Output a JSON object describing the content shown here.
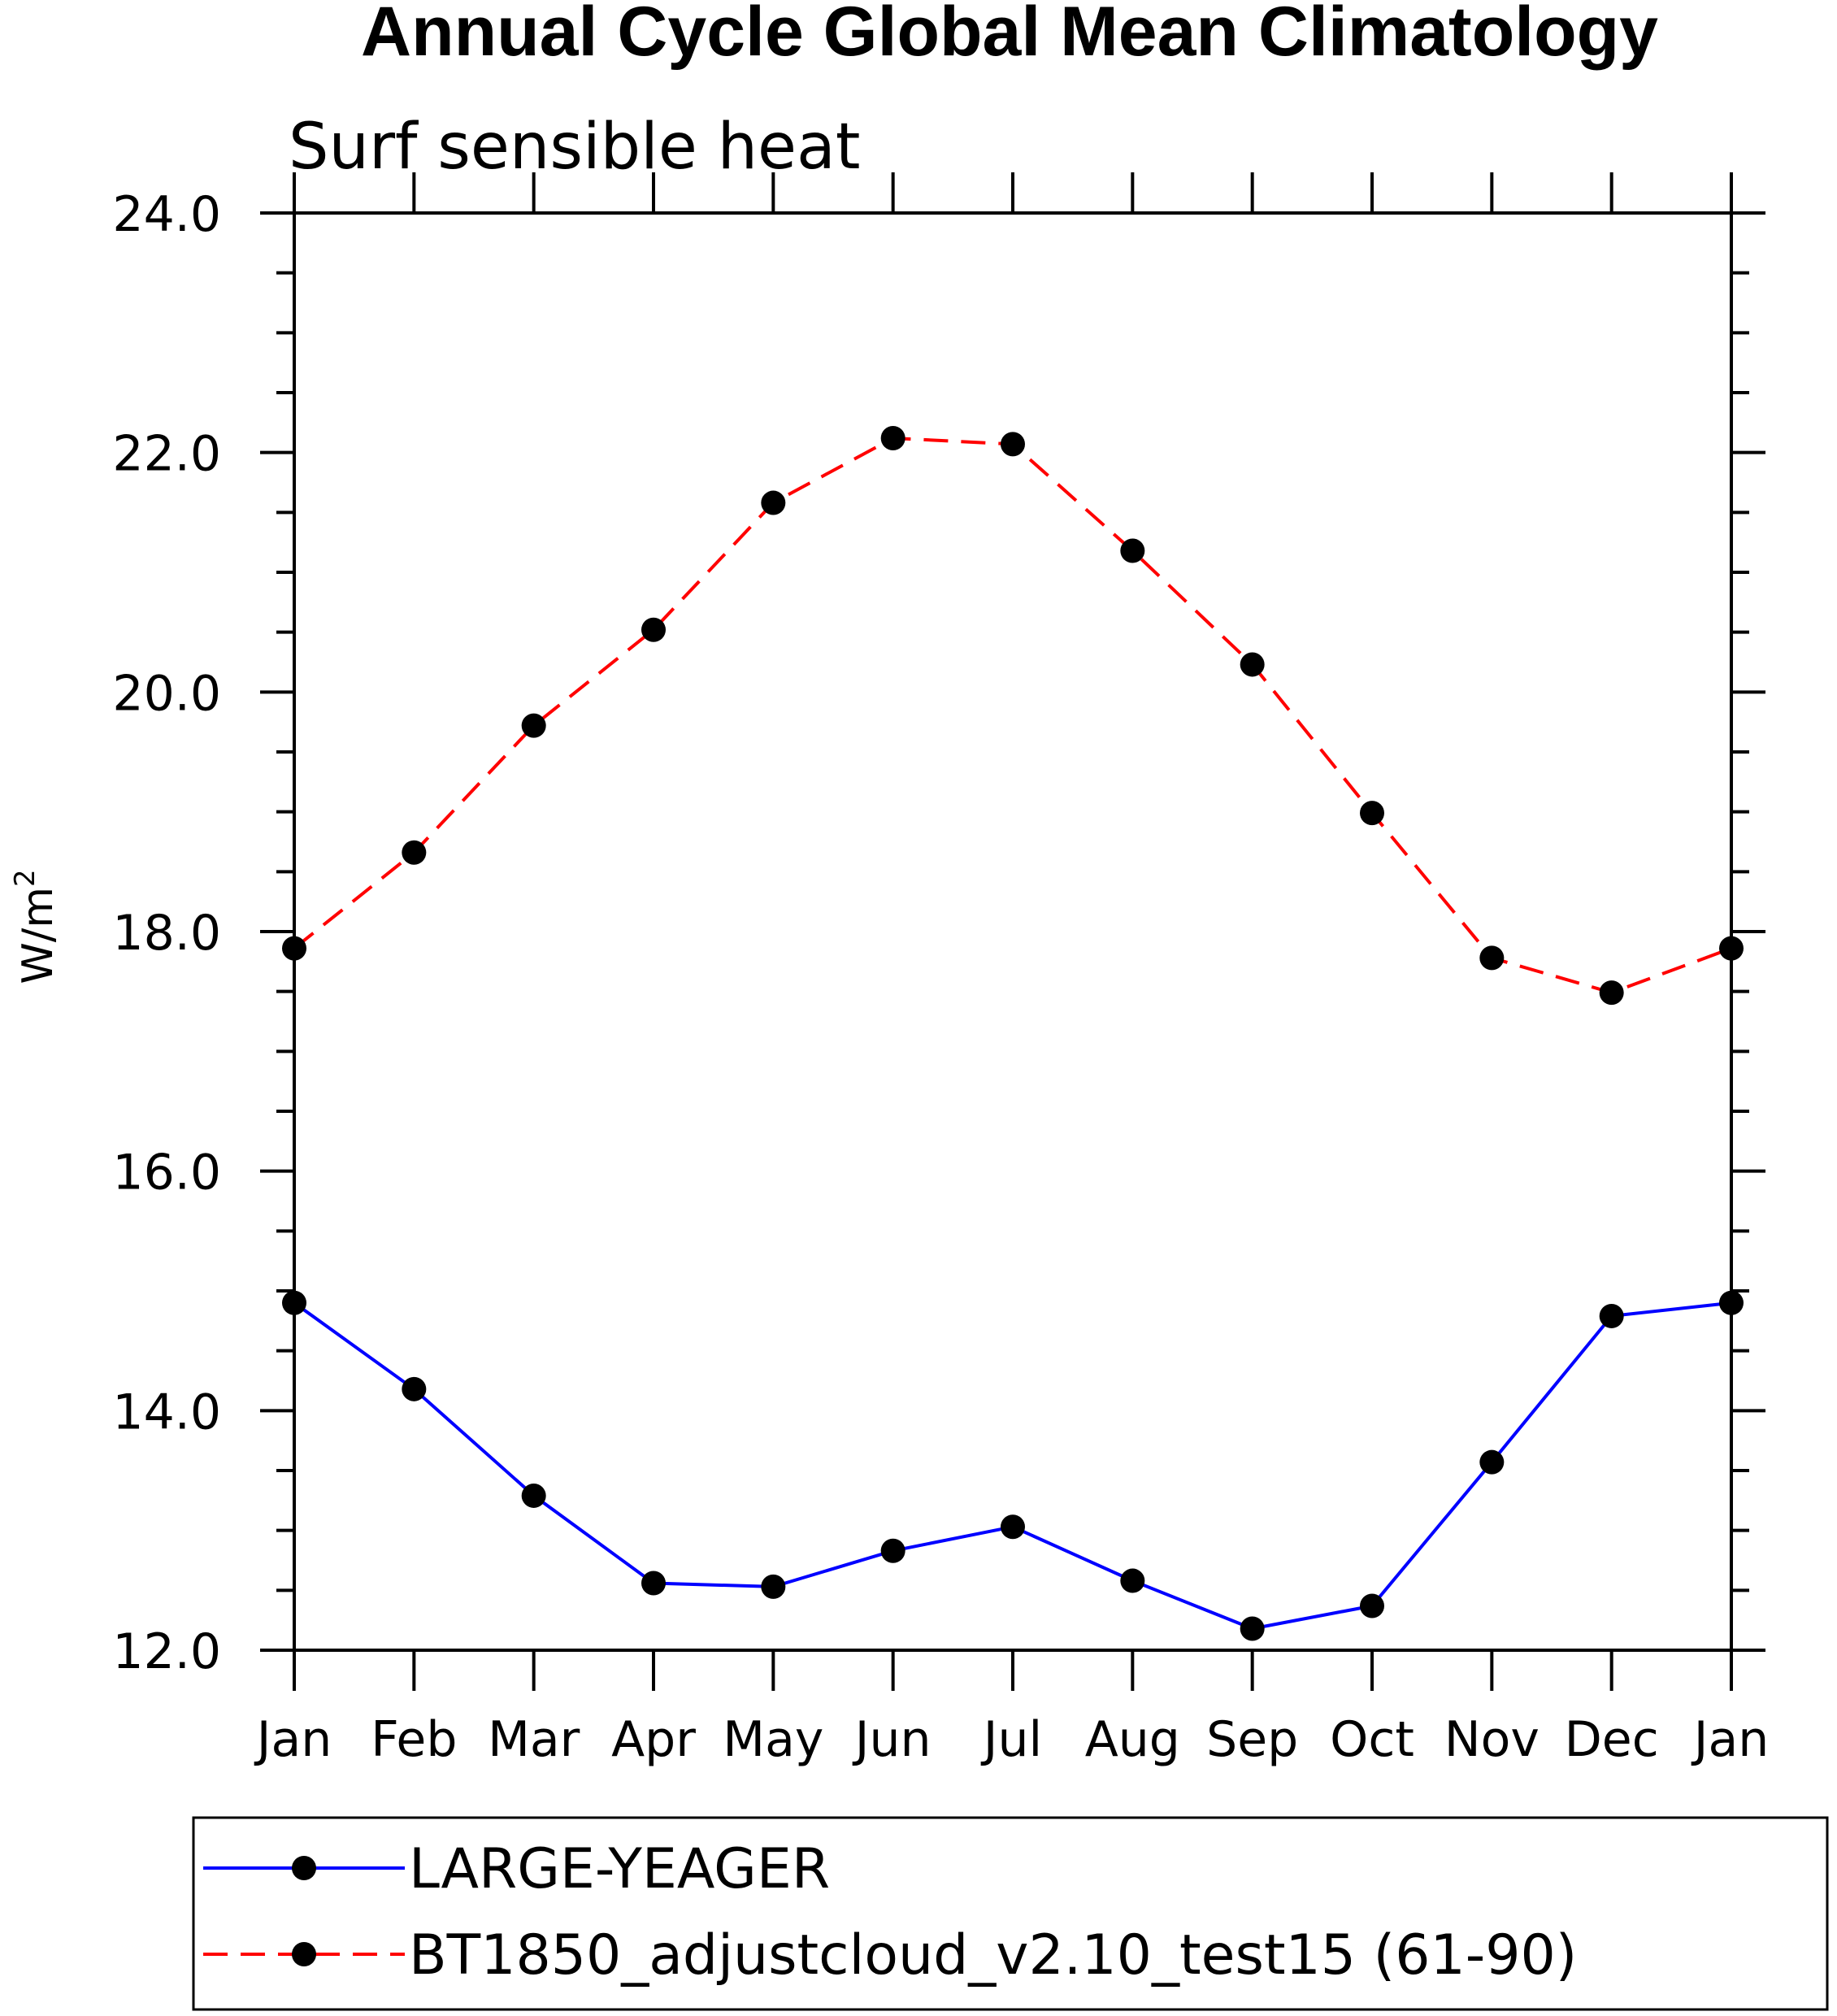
{
  "chart_data": {
    "type": "line",
    "title": "Annual Cycle Global Mean Climatology",
    "subtitle": "Surf sensible heat",
    "ylabel": "W/m",
    "ylabel_superscript": "2",
    "xlabel": "",
    "categories": [
      "Jan",
      "Feb",
      "Mar",
      "Apr",
      "May",
      "Jun",
      "Jul",
      "Aug",
      "Sep",
      "Oct",
      "Nov",
      "Dec",
      "Jan"
    ],
    "ylim": [
      12.0,
      24.0
    ],
    "yticks": [
      "12.0",
      "14.0",
      "16.0",
      "18.0",
      "20.0",
      "22.0",
      "24.0"
    ],
    "grid": false,
    "legend_position": "bottom",
    "series": [
      {
        "name": "LARGE-YEAGER",
        "color": "#0000ff",
        "dashed": false,
        "values": [
          14.9,
          14.18,
          13.29,
          12.56,
          12.53,
          12.83,
          13.03,
          12.58,
          12.18,
          12.37,
          13.57,
          14.79,
          14.9
        ]
      },
      {
        "name": "BT1850_adjustcloud_v2.10_test15 (61-90)",
        "color": "#ff0000",
        "dashed": true,
        "values": [
          17.86,
          18.66,
          19.72,
          20.52,
          21.58,
          22.12,
          22.07,
          21.18,
          20.23,
          18.99,
          17.78,
          17.49,
          17.86
        ]
      }
    ]
  }
}
